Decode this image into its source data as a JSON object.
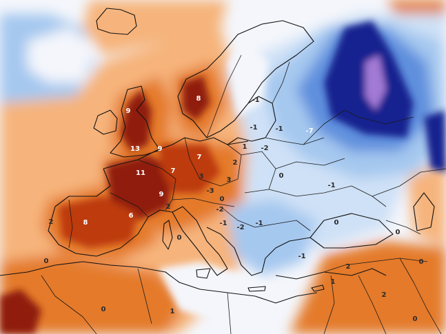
{
  "map": {
    "palette": {
      "dark_red": "#8f1a0c",
      "red": "#bd3a10",
      "orange": "#e47a2c",
      "light_orange": "#f6b47c",
      "pale_orange": "#fbd6b4",
      "white": "#f4f6fb",
      "pale_blue": "#cfe1f6",
      "light_blue": "#a5c8ef",
      "blue": "#5f8fdd",
      "deep_blue": "#263fb4",
      "navy": "#14238f",
      "purple": "#a37ad6"
    },
    "value_labels": [
      {
        "text": "9"
      },
      {
        "text": "8"
      },
      {
        "text": "13"
      },
      {
        "text": "9"
      },
      {
        "text": "7"
      },
      {
        "text": "11"
      },
      {
        "text": "7"
      },
      {
        "text": "9"
      },
      {
        "text": "8"
      },
      {
        "text": "6"
      },
      {
        "text": "2"
      },
      {
        "text": "2"
      },
      {
        "text": "3"
      },
      {
        "text": "3"
      },
      {
        "text": "0"
      },
      {
        "text": "-1"
      },
      {
        "text": "-1"
      },
      {
        "text": "-2"
      },
      {
        "text": "-1"
      },
      {
        "text": "-1"
      },
      {
        "text": "-7"
      },
      {
        "text": "-3"
      },
      {
        "text": "0"
      },
      {
        "text": "0"
      },
      {
        "text": "-1"
      },
      {
        "text": "-1"
      },
      {
        "text": "2"
      },
      {
        "text": "0"
      },
      {
        "text": "0"
      },
      {
        "text": "0"
      },
      {
        "text": "1"
      },
      {
        "text": "2"
      },
      {
        "text": "0"
      },
      {
        "text": "0"
      },
      {
        "text": "1"
      },
      {
        "text": "-2"
      },
      {
        "text": "2"
      },
      {
        "text": "0"
      },
      {
        "text": "-2"
      },
      {
        "text": "-1"
      },
      {
        "text": "1"
      }
    ]
  }
}
